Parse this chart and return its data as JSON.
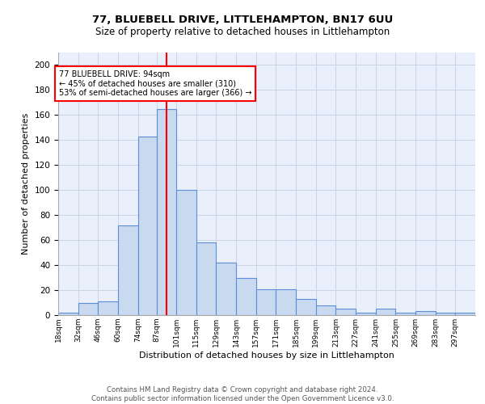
{
  "title1": "77, BLUEBELL DRIVE, LITTLEHAMPTON, BN17 6UU",
  "title2": "Size of property relative to detached houses in Littlehampton",
  "xlabel": "Distribution of detached houses by size in Littlehampton",
  "ylabel": "Number of detached properties",
  "footer1": "Contains HM Land Registry data © Crown copyright and database right 2024.",
  "footer2": "Contains public sector information licensed under the Open Government Licence v3.0.",
  "bar_color": "#c9d9f0",
  "bar_edge_color": "#5b8dd9",
  "grid_color": "#c8d4e8",
  "bg_color": "#eaf0fb",
  "annotation_text": "77 BLUEBELL DRIVE: 94sqm\n← 45% of detached houses are smaller (310)\n53% of semi-detached houses are larger (366) →",
  "annotation_box_color": "white",
  "annotation_box_edge": "red",
  "vline_color": "red",
  "vline_x": 94,
  "categories": [
    "18sqm",
    "32sqm",
    "46sqm",
    "60sqm",
    "74sqm",
    "87sqm",
    "101sqm",
    "115sqm",
    "129sqm",
    "143sqm",
    "157sqm",
    "171sqm",
    "185sqm",
    "199sqm",
    "213sqm",
    "227sqm",
    "241sqm",
    "255sqm",
    "269sqm",
    "283sqm",
    "297sqm"
  ],
  "bin_edges": [
    18,
    32,
    46,
    60,
    74,
    87,
    101,
    115,
    129,
    143,
    157,
    171,
    185,
    199,
    213,
    227,
    241,
    255,
    269,
    283,
    297,
    311
  ],
  "values": [
    2,
    10,
    11,
    72,
    143,
    165,
    100,
    58,
    42,
    30,
    21,
    21,
    13,
    8,
    5,
    2,
    5,
    2,
    3,
    2,
    2
  ],
  "ylim": [
    0,
    210
  ],
  "yticks": [
    0,
    20,
    40,
    60,
    80,
    100,
    120,
    140,
    160,
    180,
    200
  ]
}
